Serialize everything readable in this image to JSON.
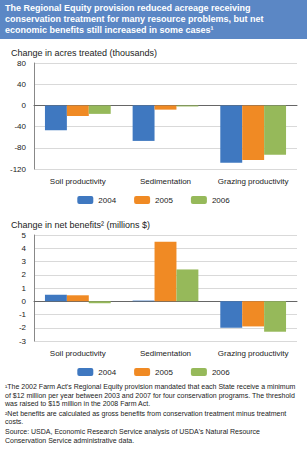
{
  "title": "The Regional Equity provision reduced acreage receiving conservation treatment for many resource problems, but net economic benefits still increased in some cases¹",
  "chart_data": [
    {
      "type": "bar",
      "title": "Change in acres treated (thousands)",
      "categories": [
        "Soil productivity",
        "Sedimentation",
        "Grazing productivity"
      ],
      "series": [
        {
          "name": "2004",
          "color": "#3f78c0",
          "values": [
            -47,
            -67,
            -108
          ]
        },
        {
          "name": "2005",
          "color": "#f08a24",
          "values": [
            -20,
            -8,
            -103
          ]
        },
        {
          "name": "2006",
          "color": "#96b95a",
          "values": [
            -16,
            -2,
            -93
          ]
        }
      ],
      "ylim": [
        -120,
        80
      ],
      "yticks": [
        -120,
        -80,
        -40,
        0,
        40,
        80
      ],
      "grid": true,
      "legend": "bottom"
    },
    {
      "type": "bar",
      "title": "Change in net benefits² (millions $)",
      "categories": [
        "Soil productivity",
        "Sedimentation",
        "Grazing productivity"
      ],
      "series": [
        {
          "name": "2004",
          "color": "#3f78c0",
          "values": [
            0.5,
            0.05,
            -2.0
          ]
        },
        {
          "name": "2005",
          "color": "#f08a24",
          "values": [
            0.45,
            4.5,
            -1.9
          ]
        },
        {
          "name": "2006",
          "color": "#96b95a",
          "values": [
            -0.15,
            2.4,
            -2.3
          ]
        }
      ],
      "ylim": [
        -3,
        5
      ],
      "yticks": [
        -3,
        -2,
        -1,
        0,
        1,
        2,
        3,
        4,
        5
      ],
      "grid": true,
      "legend": "bottom"
    }
  ],
  "footnotes": [
    "¹The 2002 Farm Act's Regional Equity provision mandated that each State receive a minimum of $12 million per year between 2003 and 2007 for four conservation programs. The threshold was raised to $15 million in the 2008 Farm Act.",
    "²Net benefits are calculated as gross benefits from conservation treatment minus treatment costs.",
    "Source: USDA, Economic Research Service analysis of USDA's Natural Resource Conservation Service administrative data."
  ]
}
